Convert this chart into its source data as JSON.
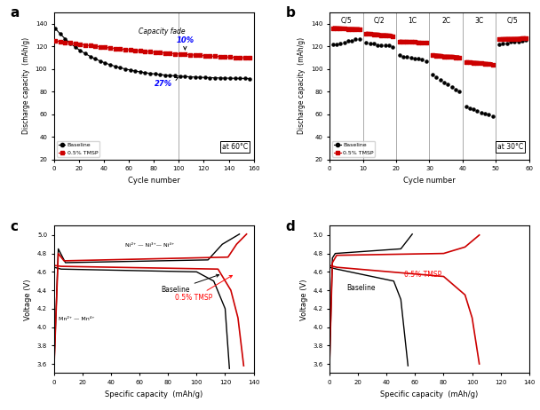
{
  "panel_a": {
    "title_label": "a",
    "xlabel": "Cycle number",
    "ylabel": "Discharge capacity  (mAh/g)",
    "ylim": [
      20,
      150
    ],
    "xlim": [
      0,
      160
    ],
    "yticks": [
      20,
      40,
      60,
      80,
      100,
      120,
      140
    ],
    "xticks": [
      0,
      20,
      40,
      60,
      80,
      100,
      120,
      140,
      160
    ],
    "annotation": "at 60°C",
    "baseline_color": "#000000",
    "tmsp_color": "#cc0000"
  },
  "panel_b": {
    "title_label": "b",
    "xlabel": "Cycle number",
    "ylabel": "Discharge capacity  (mAh/g)",
    "ylim": [
      20,
      150
    ],
    "xlim": [
      0,
      60
    ],
    "yticks": [
      20,
      40,
      60,
      80,
      100,
      120,
      140
    ],
    "xticks": [
      0,
      10,
      20,
      30,
      40,
      50,
      60
    ],
    "annotation": "at 30°C",
    "rate_labels": [
      "C/5",
      "C/2",
      "1C",
      "2C",
      "3C",
      "C/5"
    ],
    "rate_positions": [
      5,
      15,
      25,
      35,
      45,
      55
    ],
    "vline_positions": [
      10,
      20,
      30,
      40,
      50
    ],
    "baseline_color": "#000000",
    "tmsp_color": "#cc0000"
  },
  "panel_c": {
    "title_label": "c",
    "xlabel": "Specific capacity  (mAh/g)",
    "ylabel": "Voltage (V)",
    "ylim": [
      3.5,
      5.1
    ],
    "xlim": [
      0,
      140
    ],
    "yticks": [
      3.6,
      3.8,
      4.0,
      4.2,
      4.4,
      4.6,
      4.8,
      5.0
    ],
    "xticks": [
      0,
      20,
      40,
      60,
      80,
      100,
      120,
      140
    ],
    "baseline_color": "#000000",
    "tmsp_color": "#cc0000",
    "label_ni": "Ni²⁺ — Ni³⁺— Ni⁴⁺",
    "label_mn": "Mn²⁺ — Mn⁴⁺",
    "label_baseline": "Baseline",
    "label_tmsp": "0.5% TMSP"
  },
  "panel_d": {
    "title_label": "d",
    "xlabel": "Specific capacity  (mAh/g)",
    "ylabel": "Voltage (V)",
    "ylim": [
      3.5,
      5.1
    ],
    "xlim": [
      0,
      140
    ],
    "yticks": [
      3.6,
      3.8,
      4.0,
      4.2,
      4.4,
      4.6,
      4.8,
      5.0
    ],
    "xticks": [
      0,
      20,
      40,
      60,
      80,
      100,
      120,
      140
    ],
    "baseline_color": "#000000",
    "tmsp_color": "#cc0000",
    "label_baseline": "Baseline",
    "label_tmsp": "0.5% TMSP"
  }
}
